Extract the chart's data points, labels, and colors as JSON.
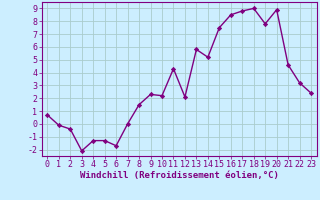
{
  "x": [
    0,
    1,
    2,
    3,
    4,
    5,
    6,
    7,
    8,
    9,
    10,
    11,
    12,
    13,
    14,
    15,
    16,
    17,
    18,
    19,
    20,
    21,
    22,
    23
  ],
  "y": [
    0.7,
    -0.1,
    -0.4,
    -2.1,
    -1.3,
    -1.3,
    -1.7,
    0.0,
    1.5,
    2.3,
    2.2,
    4.3,
    2.1,
    5.8,
    5.2,
    7.5,
    8.5,
    8.8,
    9.0,
    7.8,
    8.9,
    4.6,
    3.2,
    2.4
  ],
  "line_color": "#800080",
  "marker": "D",
  "markersize": 2.2,
  "linewidth": 1.0,
  "xlabel": "Windchill (Refroidissement éolien,°C)",
  "xlim": [
    -0.5,
    23.5
  ],
  "ylim": [
    -2.5,
    9.5
  ],
  "yticks": [
    -2,
    -1,
    0,
    1,
    2,
    3,
    4,
    5,
    6,
    7,
    8,
    9
  ],
  "xticks": [
    0,
    1,
    2,
    3,
    4,
    5,
    6,
    7,
    8,
    9,
    10,
    11,
    12,
    13,
    14,
    15,
    16,
    17,
    18,
    19,
    20,
    21,
    22,
    23
  ],
  "bg_color": "#cceeff",
  "grid_color": "#aacccc",
  "line_border_color": "#800080",
  "tick_color": "#800080",
  "label_color": "#800080",
  "xlabel_fontsize": 6.5,
  "tick_fontsize": 6.0,
  "fig_width": 3.2,
  "fig_height": 2.0,
  "dpi": 100
}
